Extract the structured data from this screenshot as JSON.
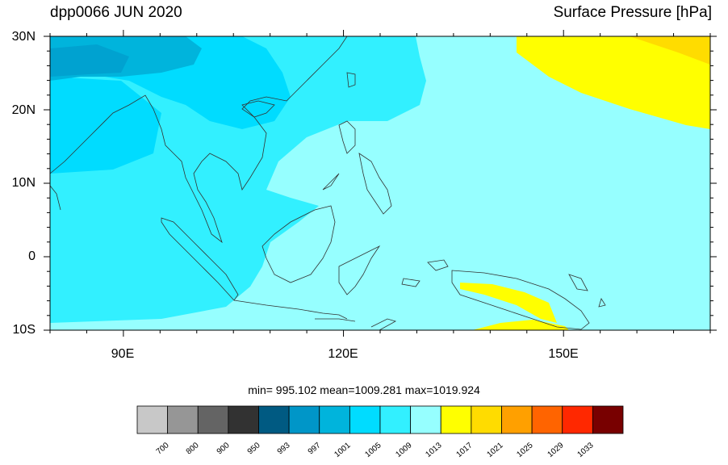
{
  "header": {
    "left_title": "dpp0066 JUN 2020",
    "right_title": "Surface Pressure [hPa]"
  },
  "axes": {
    "lat_labels": [
      "30N",
      "20N",
      "10N",
      "0",
      "10S"
    ],
    "lon_labels": [
      "90E",
      "120E",
      "150E"
    ]
  },
  "stats": {
    "text": "min= 995.102  mean=1009.281  max=1019.924"
  },
  "colorbar": {
    "levels": [
      "700",
      "800",
      "900",
      "950",
      "993",
      "997",
      "1001",
      "1005",
      "1009",
      "1013",
      "1017",
      "1021",
      "1025",
      "1029",
      "1033"
    ],
    "colors": [
      "#c8c8c8",
      "#969696",
      "#646464",
      "#323232",
      "#005a82",
      "#0096c8",
      "#00b4dc",
      "#00dcff",
      "#32f0ff",
      "#96ffff",
      "#ffff00",
      "#ffdc00",
      "#ffa000",
      "#ff6400",
      "#ff2800",
      "#780000"
    ]
  },
  "map_colors": {
    "c997": "#0096c8",
    "c1001": "#00b4dc",
    "c1005": "#00dcff",
    "c1009": "#32f0ff",
    "c1013": "#96ffff",
    "c1017": "#ffff00",
    "c1021": "#ffdc00"
  }
}
